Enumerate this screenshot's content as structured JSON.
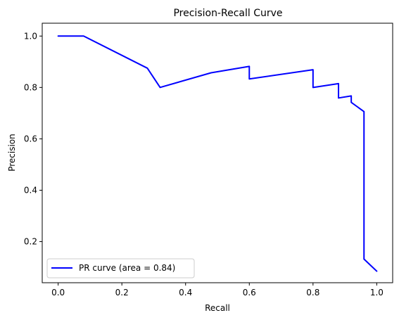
{
  "chart_data": {
    "type": "line",
    "title": "Precision-Recall Curve",
    "xlabel": "Recall",
    "ylabel": "Precision",
    "xlim": [
      -0.05,
      1.05
    ],
    "ylim": [
      0.04,
      1.05
    ],
    "xticks": [
      0.0,
      0.2,
      0.4,
      0.6,
      0.8,
      1.0
    ],
    "xtick_labels": [
      "0.0",
      "0.2",
      "0.4",
      "0.6",
      "0.8",
      "1.0"
    ],
    "yticks": [
      0.2,
      0.4,
      0.6,
      0.8,
      1.0
    ],
    "ytick_labels": [
      "0.2",
      "0.4",
      "0.6",
      "0.8",
      "1.0"
    ],
    "grid": false,
    "legend_position": "lower-left",
    "series": [
      {
        "name": "PR curve (area = 0.84)",
        "color": "#0000ff",
        "x": [
          0.0,
          0.08,
          0.28,
          0.32,
          0.48,
          0.6,
          0.6,
          0.8,
          0.8,
          0.88,
          0.88,
          0.92,
          0.92,
          0.96,
          0.96,
          1.0
        ],
        "y": [
          1.0,
          1.0,
          0.875,
          0.8,
          0.857,
          0.882,
          0.833,
          0.869,
          0.8,
          0.815,
          0.759,
          0.767,
          0.742,
          0.706,
          0.132,
          0.085
        ]
      }
    ]
  }
}
